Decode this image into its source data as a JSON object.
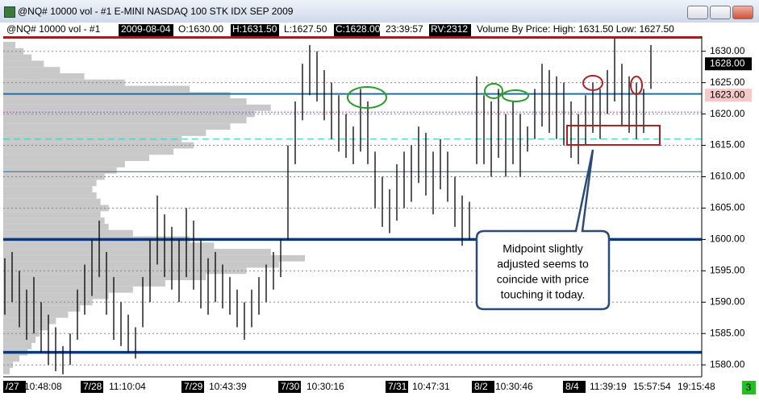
{
  "window_title": "@NQ#  10000 vol - #1 E-MINI NASDAQ 100 STK IDX SEP 2009",
  "header": {
    "symbol": "@NQ#  10000 vol - #1",
    "date": "2009-08-04",
    "open": "O:1630.00",
    "high": "H:1631.50",
    "low": "L:1627.50",
    "close": "C:1628.00",
    "time": "23:39:57",
    "rv": "RV:2312",
    "vbp": "Volume By Price:  High: 1631.50   Low: 1627.50"
  },
  "chart_data": {
    "type": "ohlc",
    "high": [
      1597,
      1598,
      1595,
      1592,
      1594,
      1590,
      1588,
      1586,
      1583,
      1585,
      1592,
      1596,
      1600,
      1603,
      1598,
      1594,
      1590,
      1588,
      1586,
      1594,
      1600,
      1607,
      1604,
      1602,
      1600,
      1605,
      1603,
      1600,
      1597,
      1598,
      1596,
      1594,
      1592,
      1590,
      1592,
      1594,
      1596,
      1598,
      1600,
      1615,
      1622,
      1628,
      1631,
      1630,
      1627,
      1625,
      1623,
      1620,
      1618,
      1624,
      1622,
      1614,
      1610,
      1608,
      1612,
      1614,
      1615,
      1618,
      1617,
      1614,
      1616,
      1614,
      1610,
      1607,
      1606,
      1626,
      1623,
      1622,
      1624,
      1620,
      1622,
      1620,
      1618,
      1624,
      1628,
      1627,
      1626,
      1625,
      1622,
      1620,
      1623,
      1625,
      1624,
      1627,
      1632,
      1628,
      1626,
      1625,
      1624,
      1631
    ],
    "low": [
      1588,
      1590,
      1586,
      1584,
      1585,
      1582,
      1580,
      1579,
      1578.5,
      1580,
      1584,
      1588,
      1591,
      1594,
      1588,
      1584,
      1583,
      1582,
      1581,
      1586,
      1590,
      1596,
      1594,
      1592,
      1590,
      1594,
      1592,
      1589,
      1588,
      1590,
      1589,
      1588,
      1586,
      1584,
      1586,
      1588,
      1590,
      1592,
      1594,
      1600,
      1612,
      1619,
      1623,
      1622,
      1619,
      1616,
      1614,
      1613,
      1612,
      1614,
      1612,
      1605,
      1602,
      1601,
      1603,
      1605,
      1606,
      1609,
      1607,
      1604,
      1608,
      1606,
      1602,
      1599,
      1600,
      1612,
      1612,
      1610,
      1613,
      1610,
      1612,
      1610,
      1614,
      1616,
      1618,
      1617,
      1616,
      1615,
      1613,
      1612,
      1615,
      1617,
      1616,
      1620,
      1622,
      1618,
      1617,
      1616,
      1617,
      1624
    ],
    "ylim": [
      1578.1,
      1632.4
    ],
    "yticks": [
      {
        "value": 1580,
        "label": "1580.00"
      },
      {
        "value": 1585,
        "label": "1585.00"
      },
      {
        "value": 1590,
        "label": "1590.00"
      },
      {
        "value": 1595,
        "label": "1595.00"
      },
      {
        "value": 1600,
        "label": "1600.00"
      },
      {
        "value": 1605,
        "label": "1605.00"
      },
      {
        "value": 1610,
        "label": "1610.00"
      },
      {
        "value": 1615,
        "label": "1615.00"
      },
      {
        "value": 1620,
        "label": "1620.00"
      },
      {
        "value": 1625,
        "label": "1625.00"
      },
      {
        "value": 1630,
        "label": "1630.00"
      }
    ],
    "price_lines": [
      {
        "value": 1632.2,
        "color": "#e00000"
      },
      {
        "value": 1623.2,
        "color": "#1f6fa8"
      },
      {
        "value": 1620.3,
        "color": "#c040c0"
      },
      {
        "value": 1616,
        "color": "#40d0d0"
      },
      {
        "value": 1610.8,
        "color": "#1f6fa8"
      },
      {
        "value": 1600,
        "color": "#0a3a78"
      },
      {
        "value": 1582,
        "color": "#0a3a78"
      }
    ],
    "price_labels": [
      {
        "value": 1628,
        "label": "1628.00"
      },
      {
        "value": 1623,
        "label": "1623.00"
      }
    ],
    "x_labels": [
      "/27",
      "10:48:08",
      "7/28",
      "11:10:04",
      "7/29",
      "10:43:39",
      "7/30",
      "10:30:16",
      "7/31",
      "10:47:31",
      "8/2",
      "10:30:46",
      "8/4",
      "11:39:19",
      "15:57:54",
      "19:15:48"
    ],
    "volume_profile": {
      "prices": [
        1579,
        1580,
        1581,
        1582,
        1583,
        1584,
        1585,
        1586,
        1587,
        1588,
        1589,
        1590,
        1591,
        1592,
        1593,
        1594,
        1595,
        1596,
        1597,
        1598,
        1599,
        1600,
        1601,
        1602,
        1603,
        1604,
        1605,
        1606,
        1607,
        1608,
        1609,
        1610,
        1611,
        1612,
        1613,
        1614,
        1615,
        1616,
        1617,
        1618,
        1619,
        1620,
        1621,
        1622,
        1623,
        1624,
        1625,
        1626,
        1627,
        1628,
        1629,
        1630,
        1631
      ],
      "volumes": [
        8,
        12,
        20,
        30,
        35,
        40,
        45,
        55,
        65,
        80,
        95,
        110,
        130,
        160,
        200,
        250,
        300,
        340,
        372,
        330,
        260,
        230,
        160,
        130,
        125,
        120,
        130,
        120,
        115,
        110,
        115,
        125,
        140,
        150,
        180,
        210,
        235,
        220,
        250,
        280,
        300,
        310,
        330,
        300,
        280,
        230,
        150,
        100,
        70,
        50,
        35,
        25,
        15
      ],
      "color": "#c8c8c8"
    }
  },
  "annotation": [
    "Midpoint slightly",
    "adjusted seems to",
    "coincide with price",
    "touching it today."
  ],
  "corner_label": "3"
}
